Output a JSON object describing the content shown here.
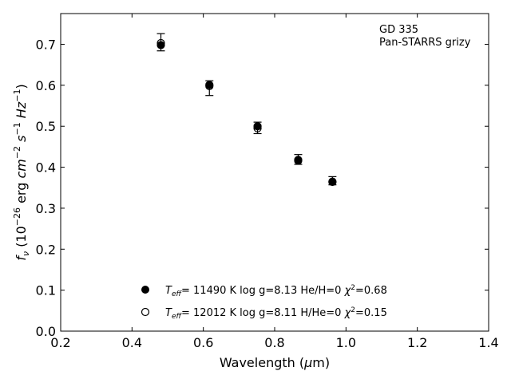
{
  "chart_data": {
    "type": "scatter",
    "xlabel": "Wavelength (μm)",
    "ylabel": "fν (10⁻²⁶ erg cm⁻² s⁻¹ Hz⁻¹)",
    "xlim": [
      0.2,
      1.4
    ],
    "ylim": [
      0.0,
      0.775
    ],
    "xticks": [
      "0.2",
      "0.4",
      "0.6",
      "0.8",
      "1.0",
      "1.2",
      "1.4"
    ],
    "yticks": [
      "0.0",
      "0.1",
      "0.2",
      "0.3",
      "0.4",
      "0.5",
      "0.6",
      "0.7"
    ],
    "grid": false,
    "legend_position": "lower-center",
    "annotations": [
      "GD 335",
      "Pan-STARRS grizy"
    ],
    "observed": {
      "x": [
        0.481,
        0.617,
        0.752,
        0.866,
        0.962
      ],
      "y": [
        0.705,
        0.593,
        0.496,
        0.419,
        0.367
      ],
      "err": [
        0.021,
        0.018,
        0.014,
        0.012,
        0.01
      ]
    },
    "series": [
      {
        "name": "T_eff= 11490 K  log g=8.13  He/H=0  χ²=0.68",
        "marker": "filled",
        "x": [
          0.481,
          0.617,
          0.752,
          0.866,
          0.962
        ],
        "y": [
          0.698,
          0.601,
          0.5,
          0.418,
          0.365
        ]
      },
      {
        "name": "T_eff= 12012 K  log g=8.11  H/He=0  χ²=0.15",
        "marker": "open",
        "x": [
          0.481,
          0.617,
          0.752,
          0.866,
          0.962
        ],
        "y": [
          0.703,
          0.598,
          0.495,
          0.416,
          0.364
        ]
      }
    ]
  }
}
